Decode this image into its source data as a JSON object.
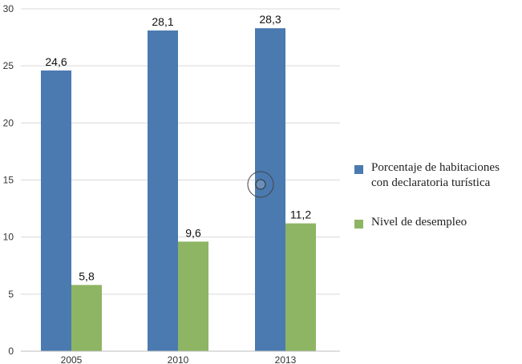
{
  "chart_data": {
    "type": "bar",
    "categories": [
      "2005",
      "2010",
      "2013"
    ],
    "series": [
      {
        "name": "Porcentaje de habitaciones con declaratoria turística",
        "color": "#4a7ab0",
        "values": [
          24.6,
          28.1,
          28.3
        ],
        "labels": [
          "24,6",
          "28,1",
          "28,3"
        ]
      },
      {
        "name": "Nivel de desempleo",
        "color": "#8db563",
        "values": [
          5.8,
          9.6,
          11.2
        ],
        "labels": [
          "5,8",
          "9,6",
          "11,2"
        ]
      }
    ],
    "y_ticks": [
      "0",
      "5",
      "10",
      "15",
      "20",
      "25",
      "30"
    ],
    "ylim": [
      0,
      30
    ],
    "grid": true,
    "legend_position": "right"
  }
}
